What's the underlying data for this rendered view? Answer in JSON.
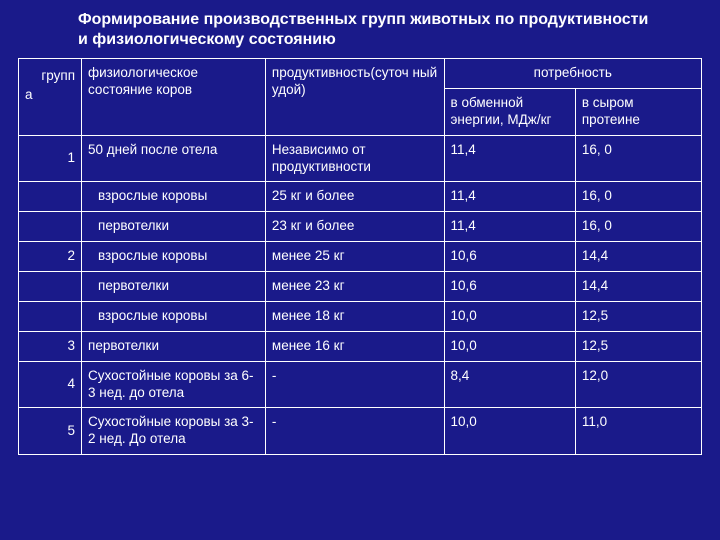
{
  "title_line1": "Формирование производственных групп животных по продуктивности",
  "title_line2": "и физиологическому состоянию",
  "head": {
    "group_col_top": "групп",
    "group_col_bottom": "а",
    "state": "физиологическое состояние коров",
    "productivity": " продуктивность(суточ ный удой)",
    "need": " потребность",
    "energy": " в обменной энергии, МДж/кг",
    "protein": "в сыром протеине"
  },
  "rows": [
    {
      "g": "1",
      "state": "50 дней после отела",
      "prod": "Независимо от продуктивности",
      "e": "11,4",
      "p": "16, 0"
    },
    {
      "g": "",
      "state": " взрослые коровы",
      "prod": "25 кг и более",
      "e": "11,4",
      "p": "16, 0"
    },
    {
      "g": "",
      "state": " первотелки",
      "prod": "23 кг и более",
      "e": "11,4",
      "p": "16, 0"
    },
    {
      "g": "2",
      "state": " взрослые коровы",
      "prod": " менее 25 кг",
      "e": "10,6",
      "p": "14,4"
    },
    {
      "g": "",
      "state": " первотелки",
      "prod": " менее 23 кг",
      "e": "10,6",
      "p": "14,4"
    },
    {
      "g": "",
      "state": " взрослые коровы",
      "prod": " менее 18 кг",
      "e": "10,0",
      "p": "12,5"
    },
    {
      "g": "3",
      "state": "первотелки",
      "prod": " менее 16 кг",
      "e": "10,0",
      "p": "12,5"
    },
    {
      "g": "4",
      "state": "Сухостойные коровы за 6-3 нед. до отела",
      "prod": "-",
      "e": "8,4",
      "p": "12,0"
    },
    {
      "g": "5",
      "state": "Сухостойные коровы за 3-2 нед. До отела",
      "prod": "-",
      "e": "10,0",
      "p": "11,0"
    }
  ],
  "colors": {
    "background": "#1a1a8a",
    "border": "#ffffff",
    "text": "#ffffff"
  }
}
